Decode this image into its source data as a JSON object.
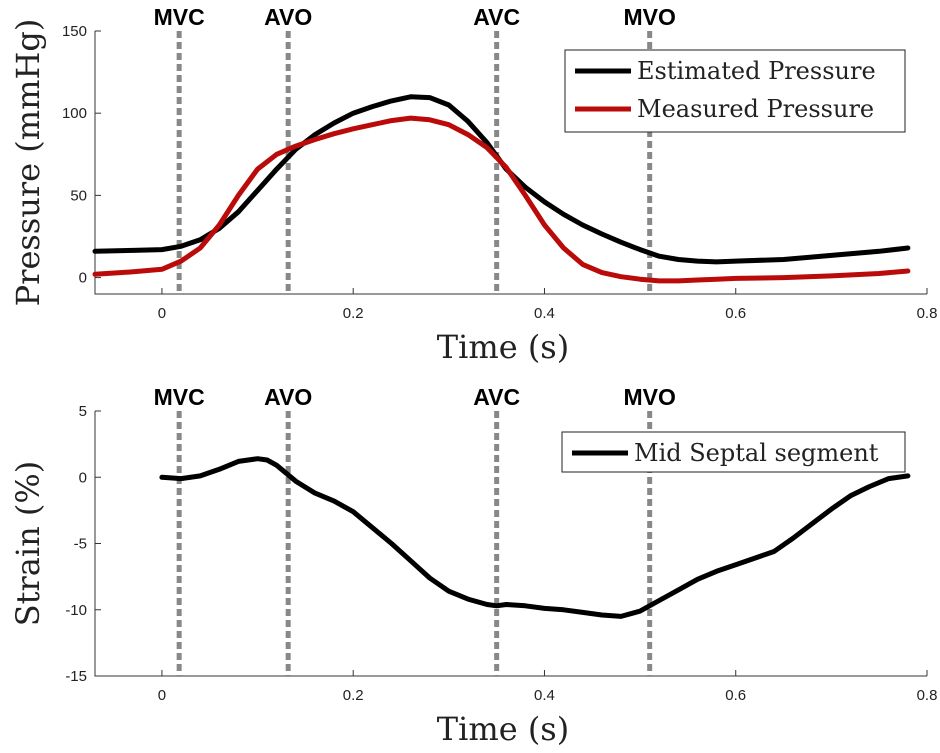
{
  "chart_data": [
    {
      "type": "line",
      "xlabel": "Time (s)",
      "ylabel": "Pressure (mmHg)",
      "xlim": [
        -0.07,
        0.8
      ],
      "ylim": [
        -10,
        150
      ],
      "xticks": [
        "0",
        "0.2",
        "0.4",
        "0.6",
        "0.8"
      ],
      "xtick_values": [
        0,
        0.2,
        0.4,
        0.6,
        0.8
      ],
      "yticks": [
        "0",
        "50",
        "100",
        "150"
      ],
      "ytick_values": [
        0,
        50,
        100,
        150
      ],
      "grid": false,
      "legend_position": "top-right",
      "events": [
        {
          "label": "MVC",
          "x": 0.018
        },
        {
          "label": "AVO",
          "x": 0.132
        },
        {
          "label": "AVC",
          "x": 0.35
        },
        {
          "label": "MVO",
          "x": 0.51
        }
      ],
      "series": [
        {
          "name": "Estimated Pressure",
          "color": "#000000",
          "x": [
            -0.07,
            -0.03,
            0.0,
            0.02,
            0.04,
            0.06,
            0.08,
            0.1,
            0.12,
            0.14,
            0.16,
            0.18,
            0.2,
            0.22,
            0.24,
            0.26,
            0.28,
            0.3,
            0.32,
            0.34,
            0.36,
            0.38,
            0.4,
            0.42,
            0.44,
            0.46,
            0.48,
            0.5,
            0.52,
            0.54,
            0.56,
            0.58,
            0.6,
            0.65,
            0.7,
            0.75,
            0.78
          ],
          "y": [
            16,
            16.5,
            17,
            19,
            23,
            30,
            40,
            53,
            66,
            78,
            87,
            94,
            100,
            104,
            107.5,
            110,
            109.5,
            105,
            95,
            82,
            66,
            55,
            46,
            38.5,
            32,
            26.5,
            21.5,
            17,
            13,
            11,
            10,
            9.5,
            10,
            11,
            13.5,
            16,
            18
          ]
        },
        {
          "name": "Measured Pressure",
          "color": "#bb0a0a",
          "x": [
            -0.07,
            -0.03,
            0.0,
            0.02,
            0.04,
            0.06,
            0.08,
            0.1,
            0.12,
            0.14,
            0.16,
            0.18,
            0.2,
            0.22,
            0.24,
            0.26,
            0.28,
            0.3,
            0.32,
            0.34,
            0.36,
            0.38,
            0.4,
            0.42,
            0.44,
            0.46,
            0.48,
            0.5,
            0.52,
            0.54,
            0.56,
            0.58,
            0.6,
            0.65,
            0.7,
            0.75,
            0.78
          ],
          "y": [
            2,
            3.5,
            5,
            10,
            18,
            32,
            50,
            66,
            75,
            80,
            84,
            87.5,
            90.5,
            93,
            95.5,
            97,
            96,
            93,
            87,
            79,
            67,
            50,
            32,
            18,
            8,
            3,
            0.5,
            -1,
            -2,
            -2,
            -1.5,
            -1,
            -0.5,
            0,
            1,
            2.5,
            4
          ]
        }
      ]
    },
    {
      "type": "line",
      "xlabel": "Time (s)",
      "ylabel": "Strain (%)",
      "xlim": [
        -0.07,
        0.8
      ],
      "ylim": [
        -15,
        5
      ],
      "xticks": [
        "0",
        "0.2",
        "0.4",
        "0.6",
        "0.8"
      ],
      "xtick_values": [
        0,
        0.2,
        0.4,
        0.6,
        0.8
      ],
      "yticks": [
        "-15",
        "-10",
        "-5",
        "0",
        "5"
      ],
      "ytick_values": [
        -15,
        -10,
        -5,
        0,
        5
      ],
      "grid": false,
      "legend_position": "top-right",
      "events": [
        {
          "label": "MVC",
          "x": 0.018
        },
        {
          "label": "AVO",
          "x": 0.132
        },
        {
          "label": "AVC",
          "x": 0.35
        },
        {
          "label": "MVO",
          "x": 0.51
        }
      ],
      "series": [
        {
          "name": "Mid Septal segment",
          "color": "#000000",
          "x": [
            0.0,
            0.02,
            0.04,
            0.06,
            0.08,
            0.1,
            0.11,
            0.12,
            0.14,
            0.16,
            0.18,
            0.2,
            0.22,
            0.24,
            0.26,
            0.28,
            0.3,
            0.32,
            0.34,
            0.35,
            0.36,
            0.38,
            0.4,
            0.42,
            0.44,
            0.46,
            0.48,
            0.5,
            0.52,
            0.54,
            0.56,
            0.58,
            0.6,
            0.62,
            0.64,
            0.66,
            0.68,
            0.7,
            0.72,
            0.74,
            0.76,
            0.78
          ],
          "y": [
            0,
            -0.1,
            0.1,
            0.6,
            1.2,
            1.4,
            1.3,
            0.9,
            -0.3,
            -1.2,
            -1.8,
            -2.6,
            -3.8,
            -5.0,
            -6.3,
            -7.6,
            -8.6,
            -9.2,
            -9.6,
            -9.7,
            -9.6,
            -9.7,
            -9.9,
            -10.0,
            -10.2,
            -10.4,
            -10.5,
            -10.1,
            -9.3,
            -8.5,
            -7.7,
            -7.1,
            -6.6,
            -6.1,
            -5.6,
            -4.6,
            -3.5,
            -2.4,
            -1.4,
            -0.7,
            -0.1,
            0.1
          ]
        }
      ]
    }
  ]
}
